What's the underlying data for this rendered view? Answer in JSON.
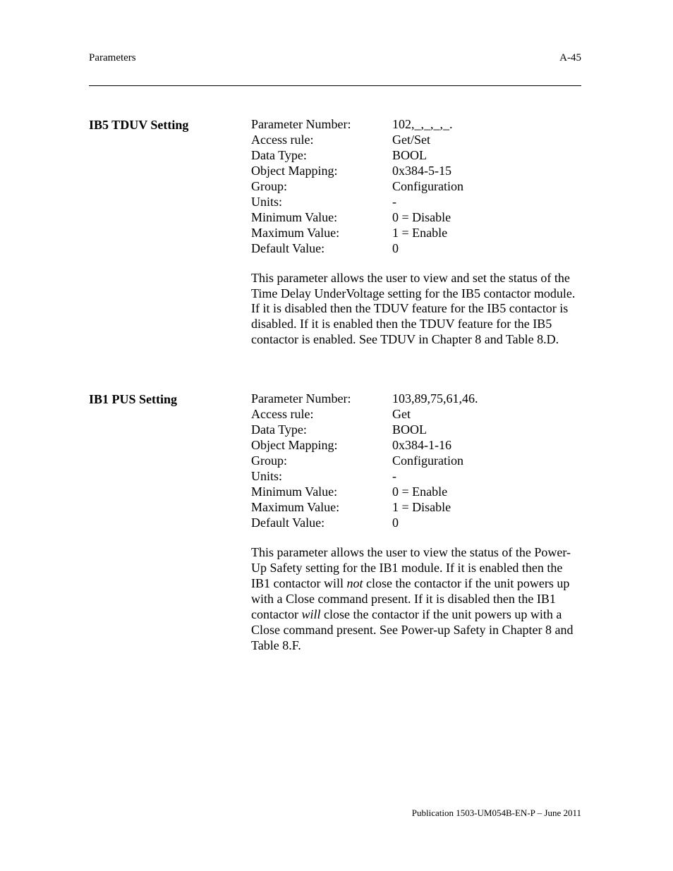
{
  "header": {
    "page_number": "A-45",
    "chapter_line": "Parameters"
  },
  "sections": [
    {
      "label": "IB5 TDUV Setting",
      "rows": [
        {
          "key": "Parameter Number:",
          "val": "102,_,_,_,_."
        },
        {
          "key": "Access rule:",
          "val": "Get/Set"
        },
        {
          "key": "Data Type:",
          "val": "BOOL"
        },
        {
          "key": "Object Mapping:",
          "val": "0x384-5-15"
        },
        {
          "key": "Group:",
          "val": "Configuration"
        },
        {
          "key": "Units:",
          "val": "-"
        },
        {
          "key": "Minimum Value:",
          "val": "0 = Disable"
        },
        {
          "key": "Maximum Value:",
          "val": "1 = Enable"
        },
        {
          "key": "Default Value:",
          "val": "0"
        }
      ],
      "para_html": "This parameter allows the user to view and set the status of the Time Delay UnderVoltage setting for the IB5 contactor module.  If it is disabled then the TDUV feature for the IB5 contactor is disabled.  If it is enabled then the TDUV feature for the IB5 contactor is enabled.  See TDUV in Chapter 8 and Table 8.D."
    },
    {
      "label": "IB1 PUS Setting",
      "rows": [
        {
          "key": "Parameter Number:",
          "val": "103,89,75,61,46."
        },
        {
          "key": "Access rule:",
          "val": "Get"
        },
        {
          "key": "Data Type:",
          "val": "BOOL"
        },
        {
          "key": "Object Mapping:",
          "val": "0x384-1-16"
        },
        {
          "key": "Group:",
          "val": "Configuration"
        },
        {
          "key": "Units:",
          "val": "-"
        },
        {
          "key": "Minimum Value:",
          "val": "0 = Enable"
        },
        {
          "key": "Maximum Value:",
          "val": "1 = Disable"
        },
        {
          "key": "Default Value:",
          "val": "0"
        }
      ],
      "para_html": "This parameter allows the user to view the status of the Power-Up Safety setting for the IB1 module.  If it is enabled then the IB1 contactor will <span class=\"italic\">not</span> close the contactor if the unit powers up with a Close command present.  If it is disabled then the IB1 contactor <span class=\"italic\">will</span> close the contactor if the unit powers up with a Close command present.  See Power-up Safety in Chapter 8 and Table 8.F."
    }
  ],
  "footer": "Publication 1503-UM054B-EN-P – June 2011"
}
